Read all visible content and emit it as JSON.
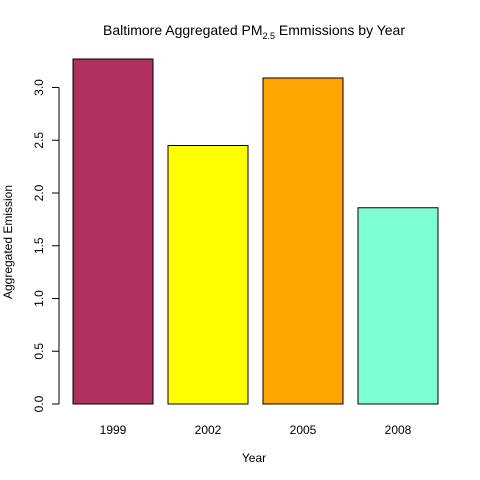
{
  "chart_data": {
    "type": "bar",
    "title": {
      "main_before": "Baltimore Aggregated PM",
      "subscript": "2.5",
      "main_after": " Emmissions by Year"
    },
    "xlabel": "Year",
    "ylabel": "Aggregated Emission",
    "categories": [
      "1999",
      "2002",
      "2005",
      "2008"
    ],
    "values": [
      3.27,
      2.45,
      3.09,
      1.86
    ],
    "colors": [
      "#B03060",
      "#FFFF00",
      "#FFA500",
      "#7FFFD4"
    ],
    "ylim": [
      0,
      3.27
    ],
    "yticks": [
      "0.0",
      "0.5",
      "1.0",
      "1.5",
      "2.0",
      "2.5",
      "3.0"
    ],
    "grid": false,
    "legend": "none"
  }
}
